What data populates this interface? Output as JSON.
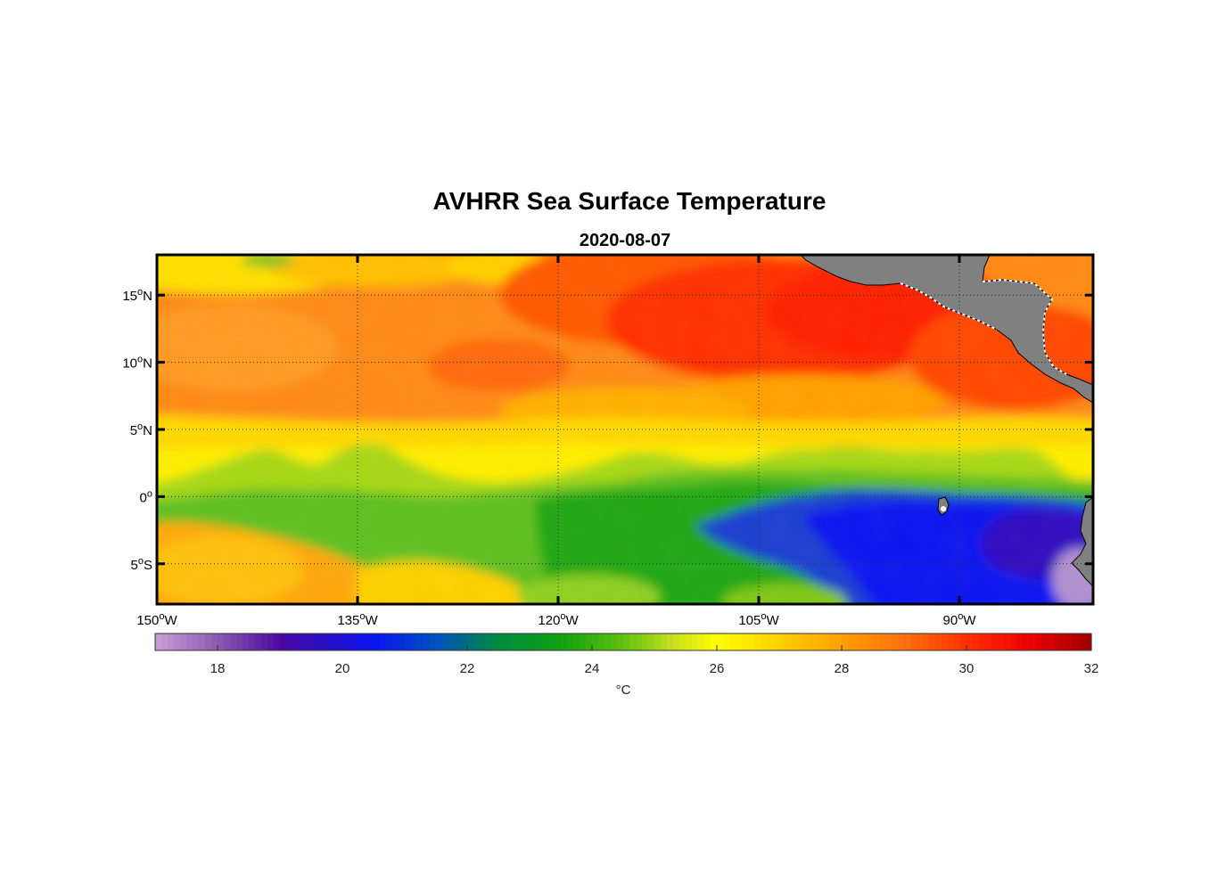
{
  "chart_data": {
    "type": "heatmap",
    "title": "AVHRR Sea Surface Temperature",
    "subtitle": "2020-08-07",
    "x_axis": {
      "range": [
        -150,
        -80
      ],
      "ticks": [
        {
          "value": -150,
          "deg": "150",
          "hemi": "W"
        },
        {
          "value": -135,
          "deg": "135",
          "hemi": "W"
        },
        {
          "value": -120,
          "deg": "120",
          "hemi": "W"
        },
        {
          "value": -105,
          "deg": "105",
          "hemi": "W"
        },
        {
          "value": -90,
          "deg": "90",
          "hemi": "W"
        }
      ]
    },
    "y_axis": {
      "range": [
        -8,
        18
      ],
      "ticks": [
        {
          "value": 15,
          "deg": "15",
          "hemi": "N"
        },
        {
          "value": 10,
          "deg": "10",
          "hemi": "N"
        },
        {
          "value": 5,
          "deg": "5",
          "hemi": "N"
        },
        {
          "value": 0,
          "deg": "0",
          "hemi": ""
        },
        {
          "value": -5,
          "deg": "5",
          "hemi": "S"
        }
      ]
    },
    "grid": true,
    "colorbar": {
      "range": [
        17,
        32
      ],
      "ticks": [
        18,
        20,
        22,
        24,
        26,
        28,
        30,
        32
      ],
      "label": "°C",
      "placement": "bottom",
      "stops": [
        {
          "v": 17,
          "color": "#c8a0d8"
        },
        {
          "v": 18,
          "color": "#8a5ab0"
        },
        {
          "v": 19,
          "color": "#4a0aa0"
        },
        {
          "v": 20.5,
          "color": "#0a14f0"
        },
        {
          "v": 21.5,
          "color": "#0050c0"
        },
        {
          "v": 22.5,
          "color": "#008a40"
        },
        {
          "v": 23.5,
          "color": "#10a010"
        },
        {
          "v": 24.5,
          "color": "#60c010"
        },
        {
          "v": 25.3,
          "color": "#c8e020"
        },
        {
          "v": 26,
          "color": "#ffff00"
        },
        {
          "v": 27,
          "color": "#ffd000"
        },
        {
          "v": 28,
          "color": "#ffa000"
        },
        {
          "v": 29,
          "color": "#ff7010"
        },
        {
          "v": 30,
          "color": "#ff3000"
        },
        {
          "v": 31,
          "color": "#f00000"
        },
        {
          "v": 32,
          "color": "#a00000"
        }
      ]
    },
    "land_color": "#808080"
  }
}
